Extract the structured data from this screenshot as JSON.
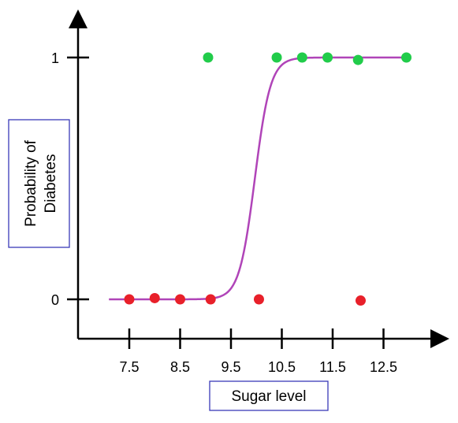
{
  "chart_data": {
    "type": "scatter",
    "xlabel": "Sugar level",
    "ylabel_lines": [
      "Probability of",
      "Diabetes"
    ],
    "x_ticks": [
      7.5,
      8.5,
      9.5,
      10.5,
      11.5,
      12.5
    ],
    "x_tick_labels": [
      "7.5",
      "8.5",
      "9.5",
      "10.5",
      "11.5",
      "12.5"
    ],
    "y_ticks": [
      0,
      1
    ],
    "y_tick_labels": [
      "0",
      "1"
    ],
    "series": [
      {
        "color": "#21cc4a",
        "points": [
          {
            "x": 9.05,
            "y": 1.0
          },
          {
            "x": 10.4,
            "y": 1.0
          },
          {
            "x": 10.9,
            "y": 1.0
          },
          {
            "x": 11.4,
            "y": 1.0
          },
          {
            "x": 12.0,
            "y": 0.99
          },
          {
            "x": 12.95,
            "y": 1.0
          }
        ]
      },
      {
        "color": "#e8202a",
        "points": [
          {
            "x": 7.5,
            "y": 0.0
          },
          {
            "x": 8.0,
            "y": 0.005
          },
          {
            "x": 8.5,
            "y": 0.0
          },
          {
            "x": 9.1,
            "y": 0.0
          },
          {
            "x": 10.05,
            "y": 0.0
          },
          {
            "x": 12.05,
            "y": -0.005
          }
        ]
      }
    ],
    "curve": {
      "type": "sigmoid",
      "color": "#b044b8",
      "x_range": [
        7.1,
        13.0
      ],
      "midpoint": 9.97,
      "steepness": 6.5
    },
    "xlim": [
      6.5,
      13.5
    ],
    "ylim": [
      -0.15,
      1.2
    ]
  }
}
